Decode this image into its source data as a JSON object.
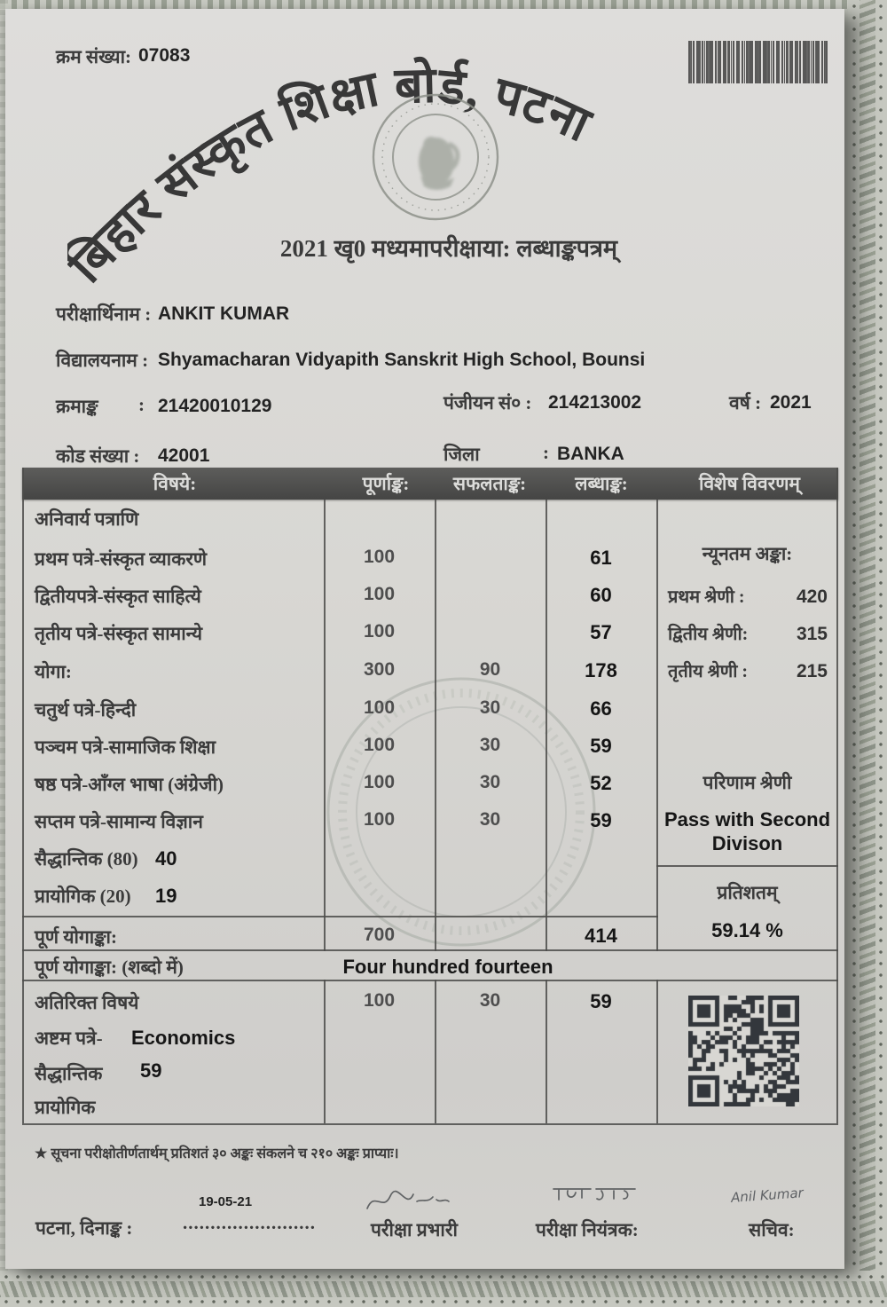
{
  "page": {
    "serial_label": "क्रम संख्या:",
    "serial_value": "07083"
  },
  "header": {
    "board_title": "बिहार संस्कृत शिक्षा बोर्ड, पटना",
    "subtitle": "2021 खृ0 मध्यमापरीक्षाया: लब्धाङ्कपत्रम्"
  },
  "student": {
    "name_label": "परीक्षार्थिनाम :",
    "name": "ANKIT KUMAR",
    "school_label": "विद्यालयनाम :",
    "school": "Shyamacharan Vidyapith Sanskrit High School, Bounsi",
    "roll_label": "क्रमाङ्क",
    "roll_sep": ":",
    "roll": "21420010129",
    "reg_label": "पंजीयन सं० :",
    "reg": "214213002",
    "year_label": "वर्ष :",
    "year": "2021",
    "code_label": "कोड संख्या :",
    "code_sep": ":",
    "code": "42001",
    "district_label": "जिला",
    "district_sep": ":",
    "district": "BANKA"
  },
  "marks_table": {
    "headers": [
      "विषये:",
      "पूर्णाङ्क:",
      "सफलताङ्क:",
      "लब्धाङ्क:",
      "विशेष विवरणम्"
    ],
    "rows": [
      {
        "subject": "अनिवार्य पत्राणि",
        "full": "",
        "pass": "",
        "obtained": ""
      },
      {
        "subject": "प्रथम पत्रे-संस्कृत व्याकरणे",
        "full": "100",
        "pass": "",
        "obtained": "61"
      },
      {
        "subject": "द्वितीयपत्रे-संस्कृत साहित्ये",
        "full": "100",
        "pass": "",
        "obtained": "60"
      },
      {
        "subject": "तृतीय पत्रे-संस्कृत सामान्ये",
        "full": "100",
        "pass": "",
        "obtained": "57"
      },
      {
        "subject": "योगा:",
        "full": "300",
        "pass": "90",
        "obtained": "178"
      },
      {
        "subject": "चतुर्थ पत्रे-हिन्दी",
        "full": "100",
        "pass": "30",
        "obtained": "66"
      },
      {
        "subject": "पञ्चम पत्रे-सामाजिक शिक्षा",
        "full": "100",
        "pass": "30",
        "obtained": "59"
      },
      {
        "subject": "षष्ठ पत्रे-आँग्ल भाषा (अंग्रेजी)",
        "full": "100",
        "pass": "30",
        "obtained": "52"
      },
      {
        "subject": "सप्तम पत्रे-सामान्य विज्ञान",
        "full": "100",
        "pass": "30",
        "obtained": "59"
      },
      {
        "subject": "सैद्धान्तिक (80)",
        "inline_value": "40"
      },
      {
        "subject": "प्रायोगिक (20)",
        "inline_value": "19"
      }
    ],
    "total_row": {
      "label": "पूर्ण योगाङ्का:",
      "full": "700",
      "pass": "",
      "obtained": "414"
    },
    "words_row": {
      "label": "पूर्ण योगाङ्का: (शब्दो में)",
      "value": "Four hundred fourteen"
    }
  },
  "special_column": {
    "min_marks_title": "न्यूनतम अङ्का:",
    "classes": [
      {
        "label": "प्रथम श्रेणी :",
        "value": "420"
      },
      {
        "label": "द्वितीय श्रेणी:",
        "value": "315"
      },
      {
        "label": "तृतीय श्रेणी :",
        "value": "215"
      }
    ],
    "result_title": "परिणाम श्रेणी",
    "result_line1": "Pass with Second",
    "result_line2": "Divison",
    "percent_label": "प्रतिशतम्",
    "percent_value": "59.14 %"
  },
  "extra_subject": {
    "title": "अतिरिक्त विषये",
    "full": "100",
    "pass": "30",
    "obtained": "59",
    "paper_label": "अष्टम पत्रे-",
    "paper_name": "Economics",
    "theory_label": "सैद्धान्तिक",
    "theory_value": "59",
    "practical_label": "प्रायोगिक"
  },
  "footnote": {
    "star": "★",
    "text": "सूचना परीक्षोतीर्णतार्थम् प्रतिशतं ३० अङ्कः संकलने च २१० अङ्कः प्राप्याः।"
  },
  "footer": {
    "date_value": "19-05-21",
    "place_date_label": "पटना, दिनाङ्क :",
    "dotted_line": "........................",
    "exam_incharge_label": "परीक्षा प्रभारी",
    "controller_label": "परीक्षा नियंत्रक:",
    "secretary_label": "सचिव:",
    "secretary_signature": "Anil Kumar"
  },
  "colors": {
    "paper": "#d8d7d3",
    "table_line": "#4c4c4a",
    "header_bar": "#4f4f4f",
    "ink": "#2e2e2e"
  }
}
